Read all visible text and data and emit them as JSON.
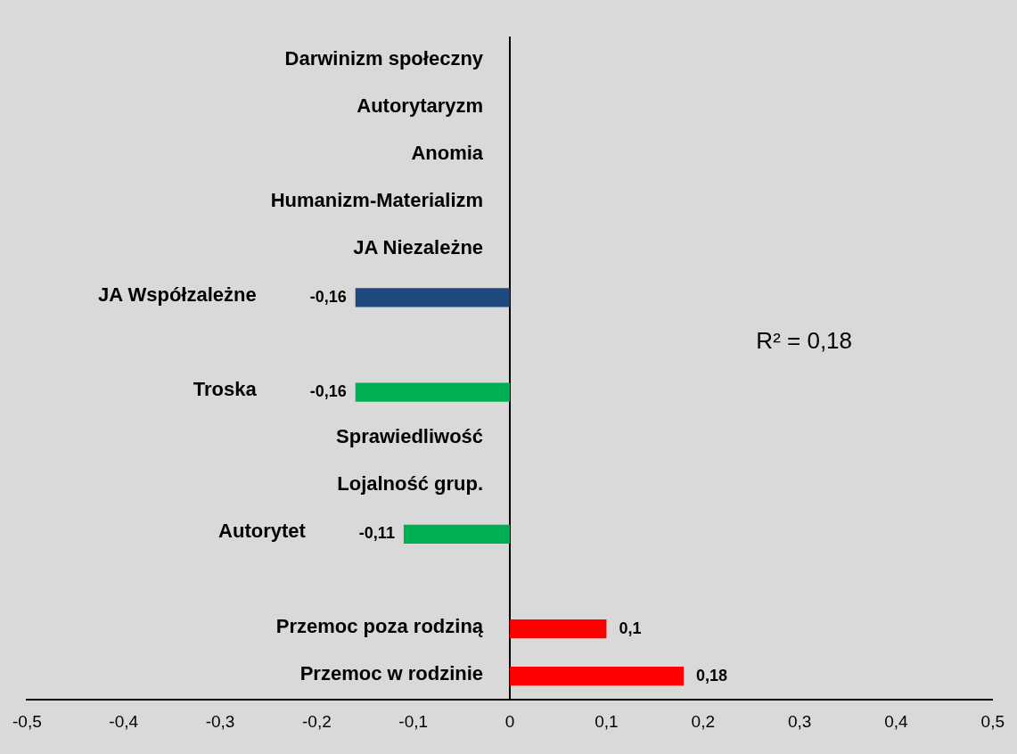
{
  "chart_data": {
    "type": "bar",
    "orientation": "horizontal",
    "categories": [
      "Darwinizm społeczny",
      "Autorytaryzm",
      "Anomia",
      "Humanizm-Materializm",
      "JA Niezależne",
      "JA Współzależne",
      null,
      "Troska",
      "Sprawiedliwość",
      "Lojalność grup.",
      "Autorytet",
      null,
      "Przemoc poza rodziną",
      "Przemoc w rodzinie"
    ],
    "values": [
      null,
      null,
      null,
      null,
      null,
      -0.16,
      null,
      -0.16,
      null,
      null,
      -0.11,
      null,
      0.1,
      0.18
    ],
    "value_labels": [
      null,
      null,
      null,
      null,
      null,
      "-0,16",
      null,
      "-0,16",
      null,
      null,
      "-0,11",
      null,
      "0,1",
      "0,18"
    ],
    "colors": [
      "#1f497d",
      "#1f497d",
      "#1f497d",
      "#1f497d",
      "#1f497d",
      "#1f497d",
      "#00b050",
      "#00b050",
      "#00b050",
      "#00b050",
      "#00b050",
      "#ff0000",
      "#ff0000",
      "#ff0000"
    ],
    "xlim": [
      -0.5,
      0.5
    ],
    "xticks": [
      {
        "value": -0.5,
        "label": "-0,5"
      },
      {
        "value": -0.4,
        "label": "-0,4"
      },
      {
        "value": -0.3,
        "label": "-0,3"
      },
      {
        "value": -0.2,
        "label": "-0,2"
      },
      {
        "value": -0.1,
        "label": "-0,1"
      },
      0,
      {
        "value": 0.1,
        "label": "0,1"
      },
      {
        "value": 0.2,
        "label": "0,2"
      },
      {
        "value": 0.3,
        "label": "0,3"
      },
      {
        "value": 0.4,
        "label": "0,4"
      },
      {
        "value": 0.5,
        "label": "0,5"
      }
    ],
    "annotations": [
      "R² = 0,18"
    ],
    "grid": false,
    "legend": false
  }
}
